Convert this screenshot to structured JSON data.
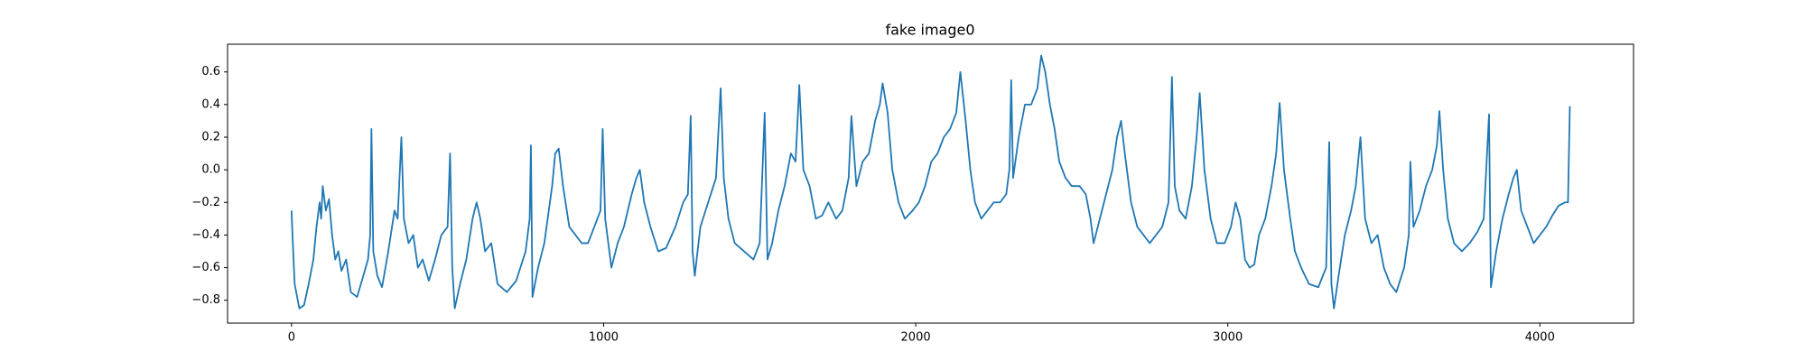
{
  "chart_data": {
    "type": "line",
    "title": "fake image0",
    "x": [
      0,
      3,
      10,
      25,
      40,
      55,
      70,
      80,
      90,
      95,
      100,
      110,
      120,
      130,
      140,
      150,
      160,
      175,
      190,
      210,
      230,
      245,
      252,
      256,
      262,
      275,
      290,
      310,
      330,
      340,
      352,
      360,
      375,
      390,
      405,
      420,
      440,
      460,
      480,
      500,
      508,
      515,
      523,
      540,
      560,
      580,
      593,
      605,
      620,
      640,
      660,
      690,
      720,
      750,
      763,
      767,
      772,
      790,
      810,
      835,
      845,
      856,
      870,
      890,
      910,
      930,
      950,
      970,
      990,
      997,
      1005,
      1025,
      1045,
      1065,
      1090,
      1105,
      1116,
      1130,
      1150,
      1175,
      1200,
      1230,
      1255,
      1270,
      1279,
      1285,
      1292,
      1310,
      1335,
      1360,
      1375,
      1385,
      1400,
      1420,
      1450,
      1480,
      1500,
      1516,
      1525,
      1540,
      1560,
      1580,
      1600,
      1615,
      1627,
      1640,
      1660,
      1680,
      1700,
      1720,
      1745,
      1765,
      1785,
      1794,
      1810,
      1830,
      1850,
      1870,
      1885,
      1894,
      1910,
      1925,
      1945,
      1965,
      1990,
      2010,
      2030,
      2050,
      2070,
      2090,
      2110,
      2130,
      2143,
      2160,
      2175,
      2190,
      2210,
      2230,
      2250,
      2270,
      2290,
      2300,
      2306,
      2312,
      2330,
      2350,
      2370,
      2390,
      2402,
      2415,
      2430,
      2445,
      2460,
      2480,
      2500,
      2525,
      2545,
      2560,
      2570,
      2590,
      2610,
      2630,
      2645,
      2658,
      2670,
      2690,
      2710,
      2730,
      2750,
      2770,
      2790,
      2810,
      2821,
      2830,
      2845,
      2865,
      2885,
      2900,
      2910,
      2925,
      2945,
      2965,
      2990,
      3010,
      3025,
      3040,
      3055,
      3070,
      3085,
      3100,
      3120,
      3140,
      3155,
      3166,
      3180,
      3200,
      3215,
      3235,
      3260,
      3290,
      3315,
      3325,
      3332,
      3340,
      3355,
      3375,
      3395,
      3410,
      3425,
      3440,
      3460,
      3480,
      3500,
      3520,
      3540,
      3565,
      3580,
      3585,
      3595,
      3615,
      3635,
      3655,
      3670,
      3678,
      3690,
      3705,
      3725,
      3750,
      3775,
      3800,
      3820,
      3837,
      3843,
      3860,
      3880,
      3900,
      3915,
      3926,
      3940,
      3960,
      3980,
      4000,
      4020,
      4040,
      4060,
      4080,
      4090,
      4096
    ],
    "values": [
      -0.25,
      -0.4,
      -0.7,
      -0.85,
      -0.83,
      -0.7,
      -0.55,
      -0.35,
      -0.2,
      -0.3,
      -0.1,
      -0.25,
      -0.18,
      -0.4,
      -0.55,
      -0.5,
      -0.62,
      -0.55,
      -0.75,
      -0.78,
      -0.65,
      -0.55,
      -0.4,
      0.25,
      -0.5,
      -0.65,
      -0.72,
      -0.5,
      -0.25,
      -0.3,
      0.2,
      -0.3,
      -0.45,
      -0.4,
      -0.6,
      -0.55,
      -0.68,
      -0.55,
      -0.4,
      -0.35,
      0.1,
      -0.6,
      -0.85,
      -0.7,
      -0.55,
      -0.3,
      -0.2,
      -0.3,
      -0.5,
      -0.45,
      -0.7,
      -0.75,
      -0.68,
      -0.5,
      -0.3,
      0.15,
      -0.78,
      -0.6,
      -0.45,
      -0.1,
      0.1,
      0.13,
      -0.1,
      -0.35,
      -0.4,
      -0.45,
      -0.45,
      -0.35,
      -0.25,
      0.25,
      -0.3,
      -0.6,
      -0.45,
      -0.35,
      -0.15,
      -0.05,
      0.0,
      -0.2,
      -0.35,
      -0.5,
      -0.48,
      -0.35,
      -0.2,
      -0.15,
      0.33,
      -0.5,
      -0.65,
      -0.35,
      -0.2,
      -0.05,
      0.5,
      -0.05,
      -0.3,
      -0.45,
      -0.5,
      -0.55,
      -0.45,
      0.35,
      -0.55,
      -0.45,
      -0.25,
      -0.1,
      0.1,
      0.05,
      0.52,
      0.0,
      -0.1,
      -0.3,
      -0.28,
      -0.2,
      -0.3,
      -0.25,
      -0.05,
      0.33,
      -0.1,
      0.05,
      0.1,
      0.3,
      0.4,
      0.53,
      0.35,
      0.0,
      -0.2,
      -0.3,
      -0.25,
      -0.2,
      -0.1,
      0.05,
      0.1,
      0.2,
      0.25,
      0.35,
      0.6,
      0.3,
      0.0,
      -0.2,
      -0.3,
      -0.25,
      -0.2,
      -0.2,
      -0.15,
      0.0,
      0.55,
      -0.05,
      0.2,
      0.4,
      0.4,
      0.5,
      0.7,
      0.6,
      0.4,
      0.25,
      0.05,
      -0.05,
      -0.1,
      -0.1,
      -0.15,
      -0.3,
      -0.45,
      -0.3,
      -0.15,
      0.0,
      0.2,
      0.3,
      0.1,
      -0.2,
      -0.35,
      -0.4,
      -0.45,
      -0.4,
      -0.35,
      -0.2,
      0.57,
      -0.1,
      -0.25,
      -0.3,
      -0.1,
      0.2,
      0.47,
      0.0,
      -0.3,
      -0.45,
      -0.45,
      -0.35,
      -0.2,
      -0.3,
      -0.55,
      -0.6,
      -0.58,
      -0.4,
      -0.3,
      -0.1,
      0.1,
      0.41,
      0.0,
      -0.3,
      -0.5,
      -0.6,
      -0.7,
      -0.72,
      -0.6,
      0.17,
      -0.7,
      -0.85,
      -0.65,
      -0.4,
      -0.25,
      -0.1,
      0.2,
      -0.3,
      -0.45,
      -0.4,
      -0.6,
      -0.7,
      -0.75,
      -0.6,
      -0.4,
      0.05,
      -0.35,
      -0.25,
      -0.1,
      0.0,
      0.15,
      0.36,
      0.0,
      -0.3,
      -0.45,
      -0.5,
      -0.45,
      -0.38,
      -0.3,
      0.34,
      -0.72,
      -0.5,
      -0.3,
      -0.15,
      -0.05,
      0.0,
      -0.25,
      -0.35,
      -0.45,
      -0.4,
      -0.35,
      -0.28,
      -0.22,
      -0.2,
      -0.2,
      0.39
    ],
    "color": "#1f77b4",
    "xlim": [
      -205,
      4300
    ],
    "xticks": [
      0,
      1000,
      2000,
      3000,
      4000
    ],
    "ylim": [
      -0.94,
      0.77
    ],
    "yticks": [
      {
        "value": -0.8,
        "label": "−0.8"
      },
      {
        "value": -0.6,
        "label": "−0.6"
      },
      {
        "value": -0.4,
        "label": "−0.4"
      },
      {
        "value": -0.2,
        "label": "−0.2"
      },
      {
        "value": 0,
        "label": "0.0"
      },
      0.2,
      0.4,
      0.6
    ],
    "grid": false
  }
}
